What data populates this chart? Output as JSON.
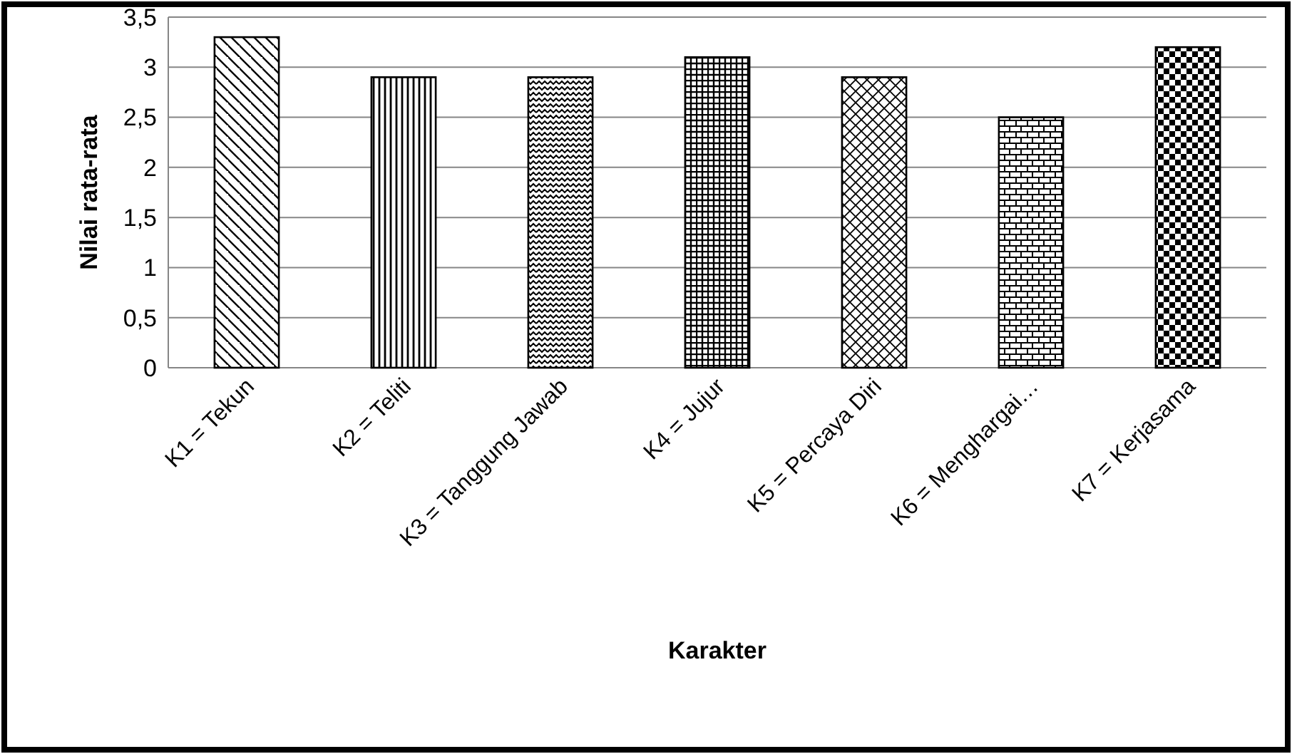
{
  "chart_data": {
    "type": "bar",
    "xlabel": "Karakter",
    "ylabel": "Nilai rata-rata",
    "categories": [
      "K1 = Tekun",
      "K2 = Teliti",
      "K3 = Tanggung Jawab",
      "K4 = Jujur",
      "K5 = Percaya Diri",
      "K6 = Menghargai…",
      "K7 = Kerjasama"
    ],
    "values": [
      3.3,
      2.9,
      2.9,
      3.1,
      2.9,
      2.5,
      3.2
    ],
    "colors": [
      "#000000",
      "#000000",
      "#000000",
      "#000000",
      "#000000",
      "#000000",
      "#000000"
    ],
    "ylim": [
      0,
      3.5
    ],
    "yticks": [
      0,
      {
        "value": 0.5,
        "label": "0,5"
      },
      1,
      {
        "value": 1.5,
        "label": "1,5"
      },
      2,
      {
        "value": 2.5,
        "label": "2,5"
      },
      3,
      {
        "value": 3.5,
        "label": "3,5"
      }
    ],
    "grid": "y"
  }
}
